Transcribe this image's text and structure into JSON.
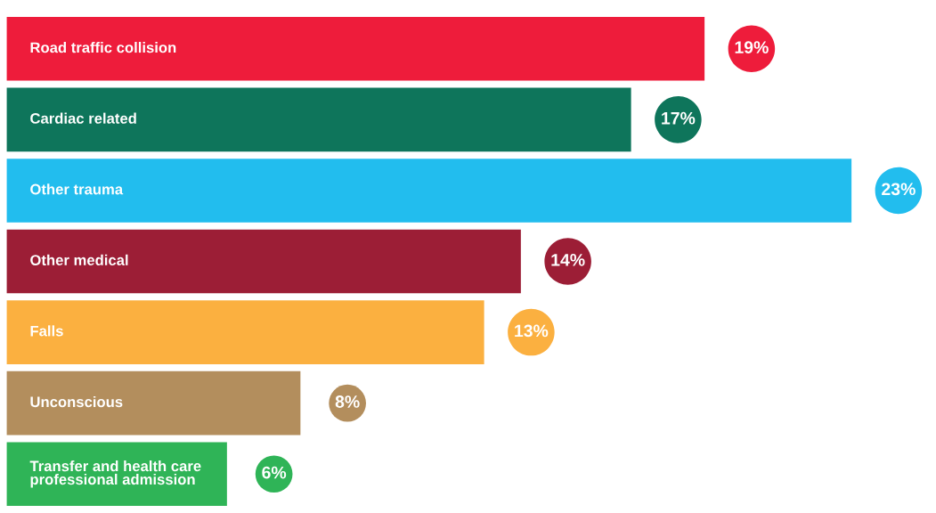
{
  "chart_data": {
    "type": "bar",
    "orientation": "horizontal",
    "categories": [
      "Road traffic collision",
      "Cardiac related",
      "Other trauma",
      "Other medical",
      "Falls",
      "Unconscious",
      "Transfer and health care\nprofessional admission"
    ],
    "values": [
      19,
      17,
      23,
      14,
      13,
      8,
      6
    ],
    "value_labels": [
      "19%",
      "17%",
      "23%",
      "14%",
      "13%",
      "8%",
      "6%"
    ],
    "colors": [
      "#ee1c3b",
      "#0e755b",
      "#22bdee",
      "#9c1e36",
      "#fbb040",
      "#b38e5d",
      "#2fb457"
    ]
  }
}
